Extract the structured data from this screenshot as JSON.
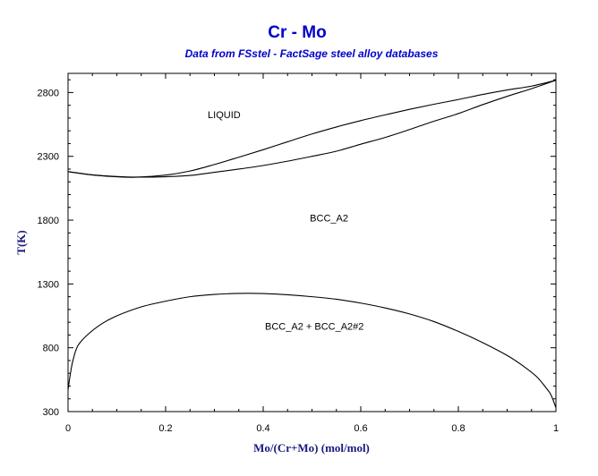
{
  "chart_data": {
    "type": "line",
    "title": "Cr - Mo",
    "subtitle": "Data from FSstel - FactSage steel alloy databases",
    "xlabel": "Mo/(Cr+Mo) (mol/mol)",
    "ylabel": "T(K)",
    "xlim": [
      0,
      1
    ],
    "ylim": [
      300,
      2950
    ],
    "x_ticks": [
      0,
      0.2,
      0.4,
      0.6,
      0.8,
      1
    ],
    "x_tick_labels": [
      "0",
      "0.2",
      "0.4",
      "0.6",
      "0.8",
      "1"
    ],
    "y_ticks": [
      300,
      800,
      1300,
      1800,
      2300,
      2800
    ],
    "y_tick_labels": [
      "300",
      "800",
      "1300",
      "1800",
      "2300",
      "2800"
    ],
    "grid": false,
    "region_labels": [
      {
        "text": "LIQUID",
        "x": 0.32,
        "y": 2600
      },
      {
        "text": "BCC_A2",
        "x": 0.535,
        "y": 1790
      },
      {
        "text": "BCC_A2 + BCC_A2#2",
        "x": 0.505,
        "y": 940
      }
    ],
    "series": [
      {
        "x": [
          0,
          0.05,
          0.1,
          0.14,
          0.2,
          0.25,
          0.3,
          0.35,
          0.4,
          0.45,
          0.5,
          0.55,
          0.6,
          0.65,
          0.7,
          0.75,
          0.8,
          0.85,
          0.9,
          0.95,
          1
        ],
        "y": [
          2180,
          2154,
          2140,
          2136,
          2153,
          2185,
          2236,
          2293,
          2352,
          2414,
          2475,
          2530,
          2580,
          2625,
          2668,
          2708,
          2745,
          2785,
          2820,
          2850,
          2896
        ]
      },
      {
        "x": [
          0,
          0.05,
          0.1,
          0.14,
          0.2,
          0.25,
          0.3,
          0.35,
          0.4,
          0.45,
          0.5,
          0.55,
          0.6,
          0.65,
          0.7,
          0.75,
          0.8,
          0.85,
          0.9,
          0.95,
          1
        ],
        "y": [
          2180,
          2155,
          2142,
          2137,
          2140,
          2150,
          2175,
          2200,
          2228,
          2262,
          2300,
          2340,
          2395,
          2448,
          2510,
          2575,
          2635,
          2705,
          2770,
          2830,
          2896
        ]
      },
      {
        "x": [
          0,
          0.005,
          0.01,
          0.02,
          0.04,
          0.07,
          0.1,
          0.15,
          0.2,
          0.25,
          0.3,
          0.35,
          0.4,
          0.45,
          0.5,
          0.55,
          0.6,
          0.65,
          0.7,
          0.75,
          0.8,
          0.85,
          0.9,
          0.93,
          0.96,
          0.98,
          0.99,
          1
        ],
        "y": [
          470,
          600,
          700,
          815,
          902,
          990,
          1050,
          1120,
          1165,
          1200,
          1218,
          1226,
          1225,
          1215,
          1200,
          1180,
          1150,
          1112,
          1065,
          1005,
          928,
          840,
          740,
          665,
          575,
          485,
          430,
          330
        ]
      }
    ]
  }
}
